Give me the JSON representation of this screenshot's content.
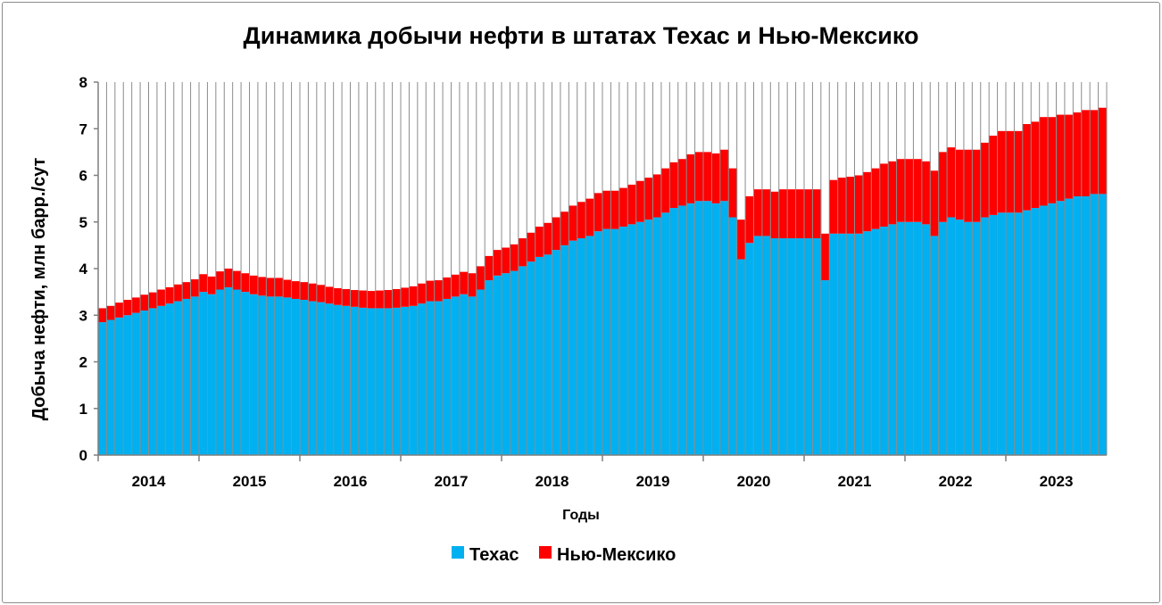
{
  "chart_data": {
    "type": "bar",
    "stacked": true,
    "title": "Динамика добычи нефти в штатах Техас и Нью-Мексико",
    "xlabel": "Годы",
    "ylabel": "Добыча нефти, млн барр./сут",
    "ylim": [
      0,
      8
    ],
    "yticks": [
      "0",
      "1",
      "2",
      "3",
      "4",
      "5",
      "6",
      "7",
      "8"
    ],
    "xticks": [
      "2014",
      "2015",
      "2016",
      "2017",
      "2018",
      "2019",
      "2020",
      "2021",
      "2022",
      "2023"
    ],
    "grid": "vertical",
    "legend_position": "bottom",
    "colors": {
      "texas": "#00b0f0",
      "new_mexico": "#ff0000",
      "grid": "#8c8c8c"
    },
    "series": [
      {
        "name": "Техас",
        "color": "#00b0f0",
        "values": [
          2.85,
          2.9,
          2.95,
          3.0,
          3.05,
          3.1,
          3.15,
          3.2,
          3.25,
          3.3,
          3.35,
          3.4,
          3.5,
          3.45,
          3.55,
          3.6,
          3.55,
          3.5,
          3.45,
          3.42,
          3.4,
          3.4,
          3.38,
          3.35,
          3.33,
          3.3,
          3.28,
          3.25,
          3.22,
          3.2,
          3.18,
          3.16,
          3.15,
          3.15,
          3.15,
          3.16,
          3.18,
          3.2,
          3.25,
          3.3,
          3.3,
          3.35,
          3.4,
          3.45,
          3.4,
          3.55,
          3.75,
          3.85,
          3.9,
          3.95,
          4.05,
          4.15,
          4.25,
          4.3,
          4.4,
          4.5,
          4.6,
          4.65,
          4.7,
          4.8,
          4.85,
          4.85,
          4.9,
          4.95,
          5.0,
          5.05,
          5.1,
          5.2,
          5.3,
          5.35,
          5.4,
          5.45,
          5.45,
          5.4,
          5.45,
          5.1,
          4.2,
          4.55,
          4.7,
          4.7,
          4.65,
          4.65,
          4.65,
          4.65,
          4.65,
          4.65,
          3.75,
          4.75,
          4.75,
          4.75,
          4.75,
          4.8,
          4.85,
          4.9,
          4.95,
          5.0,
          5.0,
          5.0,
          4.95,
          4.7,
          5.0,
          5.1,
          5.05,
          5.0,
          5.0,
          5.1,
          5.15,
          5.2,
          5.2,
          5.2,
          5.25,
          5.3,
          5.35,
          5.4,
          5.45,
          5.5,
          5.55,
          5.55,
          5.6,
          5.6
        ]
      },
      {
        "name": "Нью-Мексико",
        "color": "#ff0000",
        "values": [
          0.3,
          0.3,
          0.32,
          0.33,
          0.33,
          0.34,
          0.34,
          0.35,
          0.35,
          0.36,
          0.36,
          0.37,
          0.38,
          0.38,
          0.39,
          0.4,
          0.4,
          0.4,
          0.4,
          0.4,
          0.4,
          0.4,
          0.38,
          0.38,
          0.38,
          0.38,
          0.37,
          0.36,
          0.36,
          0.36,
          0.36,
          0.37,
          0.37,
          0.38,
          0.39,
          0.4,
          0.41,
          0.42,
          0.43,
          0.44,
          0.45,
          0.46,
          0.47,
          0.48,
          0.5,
          0.5,
          0.52,
          0.55,
          0.55,
          0.57,
          0.6,
          0.62,
          0.65,
          0.68,
          0.7,
          0.72,
          0.75,
          0.78,
          0.8,
          0.82,
          0.82,
          0.82,
          0.83,
          0.85,
          0.88,
          0.9,
          0.92,
          0.95,
          0.98,
          1.0,
          1.05,
          1.05,
          1.05,
          1.07,
          1.1,
          1.05,
          0.85,
          1.0,
          1.0,
          1.0,
          1.0,
          1.05,
          1.05,
          1.05,
          1.05,
          1.05,
          1.0,
          1.15,
          1.2,
          1.22,
          1.25,
          1.27,
          1.3,
          1.35,
          1.35,
          1.35,
          1.35,
          1.35,
          1.35,
          1.4,
          1.5,
          1.5,
          1.5,
          1.55,
          1.55,
          1.6,
          1.7,
          1.75,
          1.75,
          1.75,
          1.85,
          1.85,
          1.9,
          1.85,
          1.85,
          1.8,
          1.8,
          1.85,
          1.8,
          1.85
        ]
      }
    ]
  }
}
